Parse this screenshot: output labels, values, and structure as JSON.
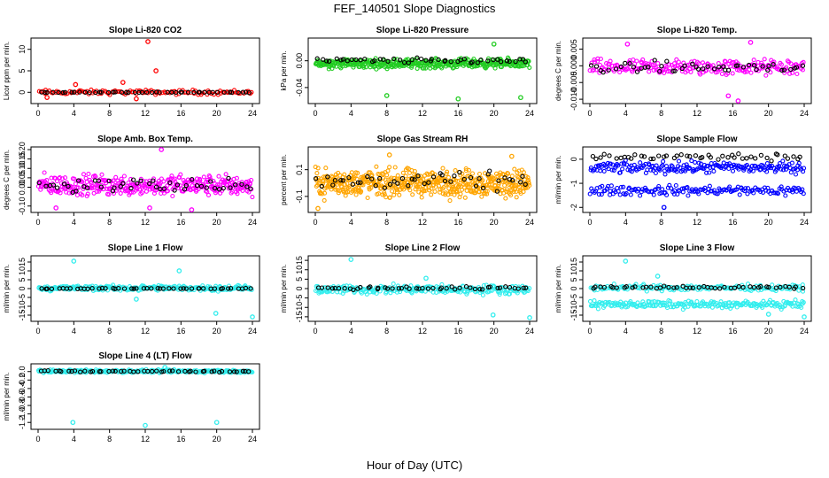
{
  "title": "FEF_140501  Slope Diagnostics",
  "xlabel": "Hour of Day (UTC)",
  "colors": {
    "axis": "#000000",
    "black_series": "#000000",
    "red": "#ff0000",
    "green": "#22cc22",
    "magenta": "#ff00ff",
    "orange": "#ffa500",
    "blue": "#0000ff",
    "cyan": "#33eeee"
  },
  "chart_data": [
    {
      "type": "scatter",
      "title": "Slope Li-820 CO2",
      "ylabel": "Licor ppm per min.",
      "xlim": [
        0,
        24
      ],
      "ylim": [
        -2,
        12
      ],
      "x_ticks": [
        "0",
        "4",
        "8",
        "12",
        "16",
        "20",
        "24"
      ],
      "y_ticks": [
        "0",
        "5",
        "10"
      ],
      "y_tick_values": [
        0,
        5,
        10
      ],
      "series": [
        {
          "name": "all",
          "color": "red",
          "band": [
            -0.8,
            0.8
          ],
          "density": 120,
          "outliers": [
            [
              12.3,
              11.8
            ],
            [
              13.2,
              5.0
            ],
            [
              9.5,
              2.3
            ],
            [
              4.2,
              1.8
            ],
            [
              11.0,
              -1.5
            ],
            [
              1.0,
              -1.2
            ]
          ]
        },
        {
          "name": "mean",
          "color": "black_series",
          "band": [
            -0.1,
            0.1
          ],
          "density": 48
        }
      ]
    },
    {
      "type": "scatter",
      "title": "Slope Li-820 Pressure",
      "ylabel": "kPa per min.",
      "xlim": [
        0,
        24
      ],
      "ylim": [
        -0.06,
        0.03
      ],
      "x_ticks": [
        "0",
        "4",
        "8",
        "12",
        "16",
        "20",
        "24"
      ],
      "y_ticks": [
        "-0.04",
        "0.00"
      ],
      "y_tick_values": [
        -0.04,
        0
      ],
      "series": [
        {
          "name": "all",
          "color": "green",
          "band": [
            -0.014,
            0.006
          ],
          "density": 420,
          "outliers": [
            [
              8.0,
              -0.052
            ],
            [
              16.0,
              -0.057
            ],
            [
              23.0,
              -0.055
            ],
            [
              20.0,
              0.025
            ]
          ]
        },
        {
          "name": "mean",
          "color": "black_series",
          "band": [
            -0.006,
            0.006
          ],
          "density": 48
        }
      ]
    },
    {
      "type": "scatter",
      "title": "Slope Li-820 Temp.",
      "ylabel": "degrees C per min.",
      "xlim": [
        0,
        24
      ],
      "ylim": [
        -0.0105,
        0.0075
      ],
      "x_ticks": [
        "0",
        "4",
        "8",
        "12",
        "16",
        "20",
        "24"
      ],
      "y_ticks": [
        "-0.010",
        "-0.005",
        "0.000",
        "0.005"
      ],
      "y_tick_values": [
        -0.01,
        -0.005,
        0,
        0.005
      ],
      "series": [
        {
          "name": "all",
          "color": "magenta",
          "band": [
            -0.004,
            0.003
          ],
          "density": 220,
          "outliers": [
            [
              18.0,
              0.007
            ],
            [
              15.5,
              -0.009
            ],
            [
              16.6,
              -0.0105
            ],
            [
              4.2,
              0.0065
            ]
          ]
        },
        {
          "name": "mean",
          "color": "black_series",
          "band": [
            -0.003,
            0.002
          ],
          "density": 48
        }
      ]
    },
    {
      "type": "scatter",
      "title": "Slope Amb. Box Temp.",
      "ylabel": "degrees C per min.",
      "xlim": [
        0,
        24
      ],
      "ylim": [
        -0.12,
        0.2
      ],
      "x_ticks": [
        "0",
        "4",
        "8",
        "12",
        "16",
        "20",
        "24"
      ],
      "y_ticks": [
        "-0.10",
        "0.00",
        "0.05",
        "0.10",
        "0.15",
        "0.20"
      ],
      "y_tick_values": [
        -0.1,
        0,
        0.05,
        0.1,
        0.15,
        0.2
      ],
      "series": [
        {
          "name": "all",
          "color": "magenta",
          "band": [
            -0.07,
            0.09
          ],
          "density": 360,
          "outliers": [
            [
              13.8,
              0.2
            ],
            [
              12.5,
              -0.11
            ],
            [
              17.2,
              -0.12
            ],
            [
              2.0,
              -0.11
            ]
          ]
        },
        {
          "name": "mean",
          "color": "black_series",
          "band": [
            -0.05,
            0.07
          ],
          "density": 48
        }
      ]
    },
    {
      "type": "scatter",
      "title": "Slope Gas Stream RH",
      "ylabel": "percent per min.",
      "xlim": [
        0,
        24
      ],
      "ylim": [
        -0.2,
        0.25
      ],
      "x_ticks": [
        "0",
        "4",
        "8",
        "12",
        "16",
        "20",
        "24"
      ],
      "y_ticks": [
        "-0.1",
        "0.1"
      ],
      "y_tick_values": [
        -0.1,
        0.1
      ],
      "series": [
        {
          "name": "all",
          "color": "orange",
          "band": [
            -0.15,
            0.15
          ],
          "density": 520,
          "outliers": [
            [
              0.3,
              -0.19
            ],
            [
              8.3,
              0.21
            ],
            [
              22.0,
              0.2
            ]
          ]
        },
        {
          "name": "mean",
          "color": "black_series",
          "band": [
            -0.09,
            0.11
          ],
          "density": 48
        }
      ]
    },
    {
      "type": "scatter",
      "title": "Slope Sample Flow",
      "ylabel": "ml/min per min.",
      "xlim": [
        0,
        24
      ],
      "ylim": [
        -2.1,
        0.4
      ],
      "x_ticks": [
        "0",
        "4",
        "8",
        "12",
        "16",
        "20",
        "24"
      ],
      "y_ticks": [
        "-2",
        "-1",
        "0"
      ],
      "y_tick_values": [
        -2,
        -1,
        0
      ],
      "series": [
        {
          "name": "upper",
          "color": "blue",
          "band": [
            -0.7,
            0.0
          ],
          "density": 200
        },
        {
          "name": "lower",
          "color": "blue",
          "band": [
            -1.6,
            -1.0
          ],
          "density": 160,
          "outliers": [
            [
              8.3,
              -2.0
            ]
          ]
        },
        {
          "name": "mean",
          "color": "black_series",
          "band": [
            -0.1,
            0.3
          ],
          "density": 48
        }
      ]
    },
    {
      "type": "scatter",
      "title": "Slope Line 1 Flow",
      "ylabel": "ml/min per min.",
      "xlim": [
        0,
        24
      ],
      "ylim": [
        -17,
        17
      ],
      "x_ticks": [
        "0",
        "4",
        "8",
        "12",
        "16",
        "20",
        "24"
      ],
      "y_ticks": [
        "-15",
        "-10",
        "-5",
        "0",
        "5",
        "10",
        "15"
      ],
      "y_tick_values": [
        -15,
        -10,
        -5,
        0,
        5,
        10,
        15
      ],
      "series": [
        {
          "name": "all",
          "color": "cyan",
          "band": [
            -2,
            2.5
          ],
          "density": 260,
          "outliers": [
            [
              4.0,
              15.5
            ],
            [
              19.9,
              -14.0
            ],
            [
              24.0,
              -16.0
            ],
            [
              15.8,
              10.0
            ],
            [
              11.0,
              -6.0
            ]
          ]
        },
        {
          "name": "mean",
          "color": "black_series",
          "band": [
            -0.3,
            0.3
          ],
          "density": 48
        }
      ]
    },
    {
      "type": "scatter",
      "title": "Slope Line 2 Flow",
      "ylabel": "ml/min per min.",
      "xlim": [
        0,
        24
      ],
      "ylim": [
        -16,
        16
      ],
      "x_ticks": [
        "0",
        "4",
        "8",
        "12",
        "16",
        "20",
        "24"
      ],
      "y_ticks": [
        "-15",
        "-10",
        "-5",
        "0",
        "5",
        "10",
        "15"
      ],
      "y_tick_values": [
        -15,
        -10,
        -5,
        0,
        5,
        10,
        15
      ],
      "series": [
        {
          "name": "all",
          "color": "cyan",
          "band": [
            -4,
            3
          ],
          "density": 260,
          "outliers": [
            [
              4.0,
              15.5
            ],
            [
              19.9,
              -14.0
            ],
            [
              24.0,
              -15.5
            ],
            [
              12.4,
              5.5
            ]
          ]
        },
        {
          "name": "mean",
          "color": "black_series",
          "band": [
            -1,
            1.5
          ],
          "density": 48
        }
      ]
    },
    {
      "type": "scatter",
      "title": "Slope Line 3 Flow",
      "ylabel": "ml/min per min.",
      "xlim": [
        0,
        24
      ],
      "ylim": [
        -17,
        17
      ],
      "x_ticks": [
        "0",
        "4",
        "8",
        "12",
        "16",
        "20",
        "24"
      ],
      "y_ticks": [
        "-15",
        "-10",
        "-5",
        "0",
        "5",
        "10",
        "15"
      ],
      "y_tick_values": [
        -15,
        -10,
        -5,
        0,
        5,
        10,
        15
      ],
      "series": [
        {
          "name": "upper",
          "color": "cyan",
          "band": [
            -2,
            3
          ],
          "density": 160
        },
        {
          "name": "lower",
          "color": "cyan",
          "band": [
            -12,
            -6
          ],
          "density": 220,
          "outliers": [
            [
              4.0,
              15.5
            ],
            [
              24.0,
              -16.0
            ],
            [
              7.6,
              7.0
            ],
            [
              20.0,
              -14.5
            ]
          ]
        },
        {
          "name": "mean",
          "color": "black_series",
          "band": [
            -0.5,
            2
          ],
          "density": 48
        }
      ]
    },
    {
      "type": "scatter",
      "title": "Slope Line 4 (LT) Flow",
      "ylabel": "ml/min per min.",
      "xlim": [
        0,
        24
      ],
      "ylim": [
        -1.3,
        0.12
      ],
      "x_ticks": [
        "0",
        "4",
        "8",
        "12",
        "16",
        "20",
        "24"
      ],
      "y_ticks": [
        "-1.2",
        "-1.0",
        "-0.8",
        "-0.6",
        "-0.4",
        "-0.2",
        "0.0"
      ],
      "y_tick_values": [
        -1.2,
        -1,
        -0.8,
        -0.6,
        -0.4,
        -0.2,
        0
      ],
      "series": [
        {
          "name": "all",
          "color": "cyan",
          "band": [
            -0.05,
            0.06
          ],
          "density": 260,
          "outliers": [
            [
              3.9,
              -1.2
            ],
            [
              12.0,
              -1.27
            ],
            [
              20.0,
              -1.2
            ],
            [
              14.2,
              0.1
            ]
          ]
        },
        {
          "name": "mean",
          "color": "black_series",
          "band": [
            -0.02,
            0.03
          ],
          "density": 48
        }
      ]
    }
  ]
}
